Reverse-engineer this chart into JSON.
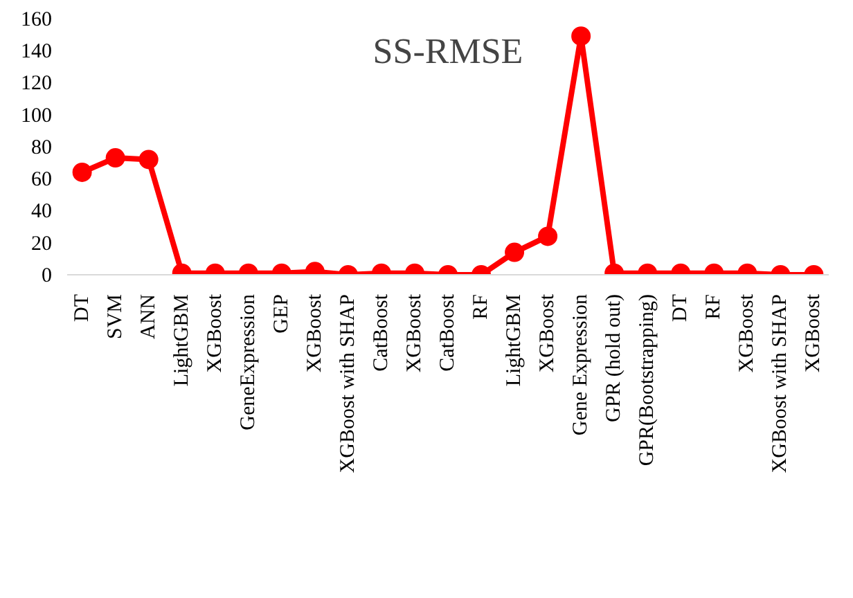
{
  "chart_data": {
    "type": "line",
    "title": "SS-RMSE",
    "categories": [
      "DT",
      "SVM",
      "ANN",
      "LightGBM",
      "XGBoost",
      "GeneExpression",
      "GEP",
      "XGBoost",
      "XGBoost with SHAP",
      "CatBoost",
      "XGBoost",
      "CatBoost",
      "RF",
      "LightGBM",
      "XGBoost",
      "Gene Expression",
      "GPR (hold out)",
      "GPR(Bootstrapping)",
      "DT",
      "RF",
      "XGBoost",
      "XGBoost with SHAP",
      "XGBoost"
    ],
    "series": [
      {
        "color": "#ff0000",
        "values": [
          64,
          73,
          72,
          1,
          1,
          1,
          1,
          2,
          0,
          1,
          1,
          0,
          0,
          14,
          24,
          149,
          1,
          1,
          1,
          1,
          1,
          0,
          0
        ]
      }
    ],
    "ylim": [
      0,
      160
    ],
    "yticks": [
      0,
      20,
      40,
      60,
      80,
      100,
      120,
      140,
      160
    ],
    "grid": false,
    "marker": "circle",
    "line_style": "solid"
  }
}
